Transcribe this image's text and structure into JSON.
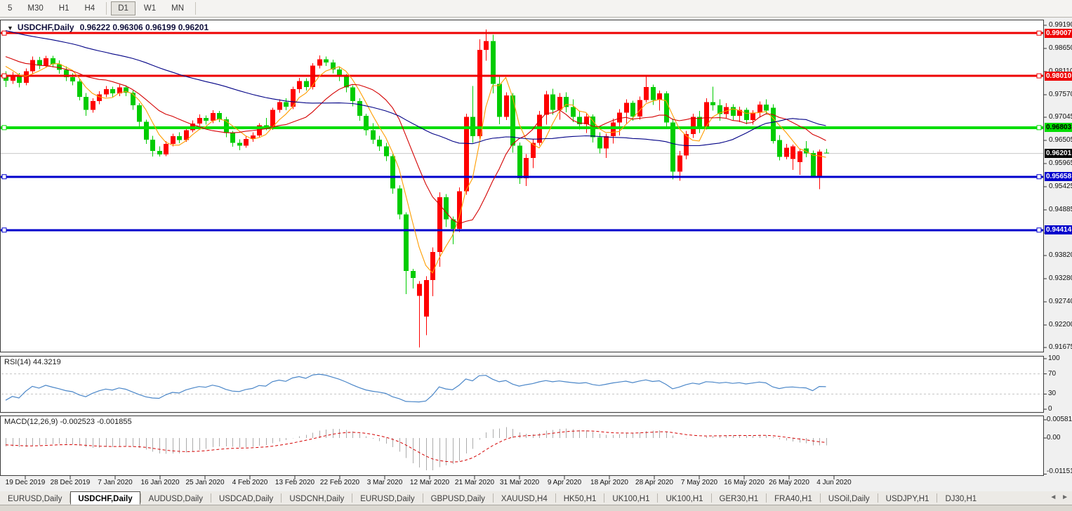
{
  "toolbar": {
    "timeframes": [
      {
        "label": "5"
      },
      {
        "label": "M30"
      },
      {
        "label": "H1"
      },
      {
        "label": "H4"
      },
      {
        "label": "D1"
      },
      {
        "label": "W1"
      },
      {
        "label": "MN"
      }
    ],
    "active": "D1",
    "separators_after": [
      3,
      6
    ]
  },
  "title": {
    "dropdown_glyph": "▼",
    "symbol": "USDCHF,Daily",
    "ohlc": "0.96222 0.96306 0.96199 0.96201"
  },
  "chart_data": {
    "type": "candlestick",
    "symbol": "USDCHF",
    "timeframe": "Daily",
    "current_ohlc": {
      "open": "0.96222",
      "high": "0.96306",
      "low": "0.96199",
      "close": "0.96201"
    },
    "ylim": [
      0.91562,
      0.99321
    ],
    "grid": false,
    "price_ticks": [
      "0.99190",
      "0.98650",
      "0.98110",
      "0.97570",
      "0.97045",
      "0.96505",
      "0.95965",
      "0.95425",
      "0.94885",
      "0.94345",
      "0.93820",
      "0.93280",
      "0.92740",
      "0.92200",
      "0.91675"
    ],
    "x_labels": [
      "19 Dec 2019",
      "28 Dec 2019",
      "7 Jan 2020",
      "16 Jan 2020",
      "25 Jan 2020",
      "4 Feb 2020",
      "13 Feb 2020",
      "22 Feb 2020",
      "3 Mar 2020",
      "12 Mar 2020",
      "21 Mar 2020",
      "31 Mar 2020",
      "9 Apr 2020",
      "18 Apr 2020",
      "28 Apr 2020",
      "7 May 2020",
      "16 May 2020",
      "26 May 2020",
      "4 Jun 2020"
    ],
    "horizontal_lines": [
      {
        "price": 0.99007,
        "label": "0.99007",
        "color": "#ee0000",
        "text_color": "#ffffff",
        "thickness": 3
      },
      {
        "price": 0.9801,
        "label": "0.98010",
        "color": "#ee0000",
        "text_color": "#ffffff",
        "thickness": 3
      },
      {
        "price": 0.96803,
        "label": "0.96803",
        "color": "#00dd00",
        "text_color": "#000000",
        "thickness": 4
      },
      {
        "price": 0.95658,
        "label": "0.95658",
        "color": "#0000cc",
        "text_color": "#ffffff",
        "thickness": 3
      },
      {
        "price": 0.94414,
        "label": "0.94414",
        "color": "#0000cc",
        "text_color": "#ffffff",
        "thickness": 3
      }
    ],
    "current_price": {
      "value": 0.96201,
      "label": "0.96201",
      "bg": "#000000",
      "text_color": "#ffffff",
      "line_color": "#c8c8c8"
    },
    "colors": {
      "bull": "#fe0000",
      "bear": "#00cc00"
    },
    "moving_averages": [
      {
        "name": "fast",
        "period": 5,
        "color": "#ff9d00"
      },
      {
        "name": "medium",
        "period": 13,
        "color": "#d40000"
      },
      {
        "name": "slow",
        "period": 50,
        "color": "#000085"
      }
    ],
    "prehistory_closes": [
      0.9988,
      0.9978,
      0.9984,
      0.9972,
      0.9978,
      0.9966,
      0.9972,
      0.996,
      0.9965,
      0.9954,
      0.9959,
      0.9948,
      0.9953,
      0.9942,
      0.9947,
      0.9936,
      0.9941,
      0.993,
      0.9935,
      0.9924,
      0.9929,
      0.9918,
      0.9923,
      0.9912,
      0.9917,
      0.9906,
      0.9911,
      0.99,
      0.9905,
      0.9894,
      0.9899,
      0.9888,
      0.9893,
      0.9882,
      0.9887,
      0.9876,
      0.9881,
      0.987,
      0.9875,
      0.9864,
      0.9868,
      0.9858,
      0.9862,
      0.9852,
      0.9856,
      0.9846,
      0.9848,
      0.9838,
      0.9828,
      0.9812
    ],
    "candles": [
      [
        0.98,
        0.9812,
        0.9775,
        0.979
      ],
      [
        0.979,
        0.981,
        0.9782,
        0.9802
      ],
      [
        0.9802,
        0.9808,
        0.9774,
        0.9785
      ],
      [
        0.9785,
        0.9818,
        0.9779,
        0.9812
      ],
      [
        0.9812,
        0.9846,
        0.9806,
        0.9838
      ],
      [
        0.9838,
        0.9845,
        0.9817,
        0.9825
      ],
      [
        0.9825,
        0.9848,
        0.982,
        0.9842
      ],
      [
        0.9842,
        0.9848,
        0.9821,
        0.9828
      ],
      [
        0.9828,
        0.9837,
        0.9806,
        0.9815
      ],
      [
        0.9815,
        0.9823,
        0.9789,
        0.9798
      ],
      [
        0.9798,
        0.9807,
        0.9779,
        0.9788
      ],
      [
        0.9788,
        0.9793,
        0.9744,
        0.9752
      ],
      [
        0.9752,
        0.9761,
        0.9708,
        0.9722
      ],
      [
        0.9722,
        0.9749,
        0.9715,
        0.9742
      ],
      [
        0.9742,
        0.9765,
        0.9735,
        0.9758
      ],
      [
        0.9758,
        0.9777,
        0.9751,
        0.977
      ],
      [
        0.977,
        0.9776,
        0.9751,
        0.976
      ],
      [
        0.976,
        0.9781,
        0.9754,
        0.9774
      ],
      [
        0.9774,
        0.9779,
        0.9754,
        0.9762
      ],
      [
        0.9762,
        0.9767,
        0.9722,
        0.9732
      ],
      [
        0.9732,
        0.9737,
        0.9683,
        0.9694
      ],
      [
        0.9694,
        0.9699,
        0.9642,
        0.9652
      ],
      [
        0.9652,
        0.9661,
        0.9613,
        0.9626
      ],
      [
        0.9626,
        0.9637,
        0.9613,
        0.9618
      ],
      [
        0.9618,
        0.9649,
        0.9614,
        0.9642
      ],
      [
        0.9642,
        0.9666,
        0.9637,
        0.966
      ],
      [
        0.966,
        0.9669,
        0.9644,
        0.9651
      ],
      [
        0.9651,
        0.9681,
        0.9647,
        0.9674
      ],
      [
        0.9674,
        0.9697,
        0.9669,
        0.969
      ],
      [
        0.969,
        0.9711,
        0.9684,
        0.9703
      ],
      [
        0.9703,
        0.9709,
        0.9687,
        0.9696
      ],
      [
        0.9696,
        0.9721,
        0.9691,
        0.9714
      ],
      [
        0.9714,
        0.9719,
        0.9693,
        0.97
      ],
      [
        0.97,
        0.9705,
        0.9658,
        0.9668
      ],
      [
        0.9668,
        0.9673,
        0.9636,
        0.9645
      ],
      [
        0.9645,
        0.9653,
        0.9628,
        0.9638
      ],
      [
        0.9638,
        0.9661,
        0.9633,
        0.9654
      ],
      [
        0.9654,
        0.9669,
        0.9647,
        0.9662
      ],
      [
        0.9662,
        0.9691,
        0.9657,
        0.9686
      ],
      [
        0.9686,
        0.9703,
        0.9674,
        0.968
      ],
      [
        0.968,
        0.9727,
        0.9675,
        0.9722
      ],
      [
        0.9722,
        0.9746,
        0.9715,
        0.974
      ],
      [
        0.974,
        0.9749,
        0.9721,
        0.9729
      ],
      [
        0.9729,
        0.9776,
        0.9723,
        0.977
      ],
      [
        0.977,
        0.9796,
        0.9761,
        0.9789
      ],
      [
        0.9789,
        0.9795,
        0.9767,
        0.9775
      ],
      [
        0.9775,
        0.9831,
        0.9769,
        0.9825
      ],
      [
        0.9825,
        0.9849,
        0.9818,
        0.984
      ],
      [
        0.984,
        0.9846,
        0.9824,
        0.9832
      ],
      [
        0.9832,
        0.9839,
        0.9807,
        0.9816
      ],
      [
        0.9816,
        0.9823,
        0.9789,
        0.9799
      ],
      [
        0.9799,
        0.9805,
        0.9763,
        0.9774
      ],
      [
        0.9774,
        0.9779,
        0.973,
        0.9742
      ],
      [
        0.9742,
        0.9749,
        0.9696,
        0.9708
      ],
      [
        0.9708,
        0.9713,
        0.9662,
        0.9674
      ],
      [
        0.9674,
        0.9691,
        0.9642,
        0.9652
      ],
      [
        0.9652,
        0.9661,
        0.9626,
        0.9637
      ],
      [
        0.9637,
        0.9645,
        0.9602,
        0.9614
      ],
      [
        0.9614,
        0.9619,
        0.9526,
        0.9538
      ],
      [
        0.9538,
        0.9546,
        0.9466,
        0.9478
      ],
      [
        0.9478,
        0.9483,
        0.9292,
        0.9346
      ],
      [
        0.9346,
        0.9351,
        0.9305,
        0.933
      ],
      [
        0.9288,
        0.9322,
        0.9168,
        0.9316
      ],
      [
        0.924,
        0.9334,
        0.9196,
        0.9325
      ],
      [
        0.9325,
        0.9401,
        0.9287,
        0.939
      ],
      [
        0.939,
        0.9529,
        0.9356,
        0.9518
      ],
      [
        0.9518,
        0.9525,
        0.9448,
        0.9466
      ],
      [
        0.9466,
        0.9473,
        0.9408,
        0.9444
      ],
      [
        0.9444,
        0.9541,
        0.9437,
        0.9532
      ],
      [
        0.9532,
        0.9713,
        0.9524,
        0.9705
      ],
      [
        0.9705,
        0.9777,
        0.9645,
        0.966
      ],
      [
        0.966,
        0.9886,
        0.9654,
        0.9862
      ],
      [
        0.9862,
        0.9909,
        0.9836,
        0.9882
      ],
      [
        0.9882,
        0.9897,
        0.976,
        0.9782
      ],
      [
        0.9782,
        0.9801,
        0.9688,
        0.9705
      ],
      [
        0.9705,
        0.9763,
        0.9698,
        0.9755
      ],
      [
        0.9755,
        0.9761,
        0.9622,
        0.9638
      ],
      [
        0.9638,
        0.9646,
        0.9549,
        0.9562
      ],
      [
        0.9562,
        0.9619,
        0.9544,
        0.961
      ],
      [
        0.961,
        0.9653,
        0.9586,
        0.9645
      ],
      [
        0.9645,
        0.9719,
        0.9638,
        0.971
      ],
      [
        0.971,
        0.9766,
        0.9687,
        0.9758
      ],
      [
        0.9758,
        0.9771,
        0.971,
        0.9722
      ],
      [
        0.9722,
        0.9761,
        0.9699,
        0.9752
      ],
      [
        0.9752,
        0.9763,
        0.9716,
        0.9728
      ],
      [
        0.9728,
        0.9746,
        0.9693,
        0.9705
      ],
      [
        0.9705,
        0.9719,
        0.9676,
        0.9688
      ],
      [
        0.9688,
        0.9713,
        0.9668,
        0.9706
      ],
      [
        0.9706,
        0.9711,
        0.9646,
        0.9658
      ],
      [
        0.9658,
        0.9669,
        0.962,
        0.9632
      ],
      [
        0.9632,
        0.9666,
        0.961,
        0.966
      ],
      [
        0.966,
        0.9701,
        0.9643,
        0.9692
      ],
      [
        0.9692,
        0.9723,
        0.9662,
        0.9715
      ],
      [
        0.9715,
        0.9746,
        0.969,
        0.9738
      ],
      [
        0.9738,
        0.9743,
        0.9696,
        0.9706
      ],
      [
        0.9706,
        0.9753,
        0.9699,
        0.9745
      ],
      [
        0.9745,
        0.9802,
        0.9739,
        0.9775
      ],
      [
        0.9775,
        0.9781,
        0.9733,
        0.9745
      ],
      [
        0.9745,
        0.9767,
        0.972,
        0.976
      ],
      [
        0.976,
        0.9765,
        0.9678,
        0.9692
      ],
      [
        0.9692,
        0.9701,
        0.956,
        0.9578
      ],
      [
        0.9578,
        0.9626,
        0.9556,
        0.9615
      ],
      [
        0.9615,
        0.9673,
        0.9606,
        0.9665
      ],
      [
        0.9665,
        0.9713,
        0.9656,
        0.9705
      ],
      [
        0.9705,
        0.9719,
        0.9668,
        0.9682
      ],
      [
        0.9682,
        0.9749,
        0.9676,
        0.974
      ],
      [
        0.974,
        0.9776,
        0.972,
        0.9732
      ],
      [
        0.9732,
        0.9746,
        0.9696,
        0.9712
      ],
      [
        0.9712,
        0.9737,
        0.9701,
        0.9728
      ],
      [
        0.9728,
        0.9735,
        0.9698,
        0.9708
      ],
      [
        0.9708,
        0.9729,
        0.9693,
        0.9722
      ],
      [
        0.9722,
        0.9727,
        0.9688,
        0.9698
      ],
      [
        0.9698,
        0.9721,
        0.9687,
        0.9715
      ],
      [
        0.9715,
        0.9741,
        0.9704,
        0.9734
      ],
      [
        0.9734,
        0.9746,
        0.9711,
        0.972
      ],
      [
        0.9727,
        0.9735,
        0.9643,
        0.9649
      ],
      [
        0.9651,
        0.9663,
        0.9604,
        0.9612
      ],
      [
        0.9612,
        0.9642,
        0.9606,
        0.9633
      ],
      [
        0.9607,
        0.9641,
        0.9582,
        0.9637
      ],
      [
        0.96,
        0.963,
        0.957,
        0.9625
      ],
      [
        0.9632,
        0.9649,
        0.9611,
        0.962
      ],
      [
        0.9621,
        0.9627,
        0.9563,
        0.9566
      ],
      [
        0.9566,
        0.9629,
        0.9537,
        0.9624
      ],
      [
        0.96222,
        0.96306,
        0.96199,
        0.96201
      ]
    ],
    "indicators": {
      "rsi": {
        "label": "RSI(14)",
        "value": "44.3219",
        "period": 14,
        "levels": [
          "100",
          "70",
          "30",
          "0"
        ],
        "level_lines": [
          70,
          30
        ],
        "color": "#4a86c8"
      },
      "macd": {
        "label": "MACD(12,26,9)",
        "values": "-0.002523 -0.001855",
        "params": [
          12,
          26,
          9
        ],
        "axis_labels": [
          "0.005818",
          "0.00",
          "-0.01151"
        ],
        "hist_color": "#ababab",
        "signal_color": "#d40000"
      }
    }
  },
  "tab_bar": {
    "tabs": [
      {
        "label": "EURUSD,Daily",
        "active": false
      },
      {
        "label": "USDCHF,Daily",
        "active": true
      },
      {
        "label": "AUDUSD,Daily",
        "active": false
      },
      {
        "label": "USDCAD,Daily",
        "active": false
      },
      {
        "label": "USDCNH,Daily",
        "active": false
      },
      {
        "label": "EURUSD,Daily",
        "active": false
      },
      {
        "label": "GBPUSD,Daily",
        "active": false
      },
      {
        "label": "XAUUSD,H4",
        "active": false
      },
      {
        "label": "HK50,H1",
        "active": false
      },
      {
        "label": "UK100,H1",
        "active": false
      },
      {
        "label": "UK100,H1",
        "active": false
      },
      {
        "label": "GER30,H1",
        "active": false
      },
      {
        "label": "FRA40,H1",
        "active": false
      },
      {
        "label": "USOil,Daily",
        "active": false
      },
      {
        "label": "USDJPY,H1",
        "active": false
      },
      {
        "label": "DJ30,H1",
        "active": false
      }
    ],
    "scroll_left": "◄",
    "scroll_right": "►"
  }
}
